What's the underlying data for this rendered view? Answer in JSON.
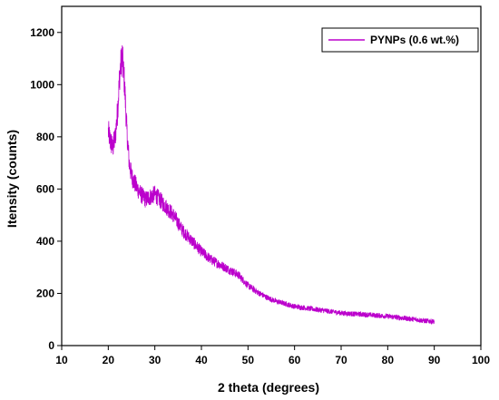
{
  "chart_data": {
    "type": "line",
    "xlabel": "2 theta (degrees)",
    "ylabel": "Itensity (counts)",
    "xlim": [
      10,
      100
    ],
    "ylim": [
      0,
      1300
    ],
    "xticks": [
      10,
      20,
      30,
      40,
      50,
      60,
      70,
      80,
      90,
      100
    ],
    "yticks": [
      0,
      200,
      400,
      600,
      800,
      1000,
      1200
    ],
    "grid": false,
    "legend_position": "top-right",
    "series": [
      {
        "name": "PYNPs (0.6 wt.%)",
        "color": "#bb00cc",
        "x": [
          20,
          20.5,
          21,
          21.5,
          22,
          22.5,
          23,
          23.5,
          24,
          24.5,
          25,
          25.5,
          26,
          27,
          28,
          29,
          30,
          31,
          32,
          33,
          34,
          35,
          36,
          37,
          38,
          39,
          40,
          42,
          44,
          46,
          48,
          50,
          52,
          54,
          56,
          58,
          60,
          62,
          64,
          66,
          68,
          70,
          72,
          74,
          76,
          78,
          80,
          82,
          84,
          86,
          88,
          90
        ],
        "y": [
          820,
          780,
          760,
          800,
          900,
          1050,
          1110,
          1000,
          820,
          700,
          650,
          630,
          610,
          580,
          560,
          570,
          580,
          560,
          540,
          520,
          500,
          470,
          440,
          420,
          400,
          380,
          360,
          330,
          310,
          290,
          270,
          230,
          205,
          185,
          170,
          160,
          150,
          145,
          140,
          135,
          130,
          125,
          122,
          120,
          118,
          115,
          112,
          108,
          104,
          100,
          95,
          92
        ]
      }
    ]
  }
}
